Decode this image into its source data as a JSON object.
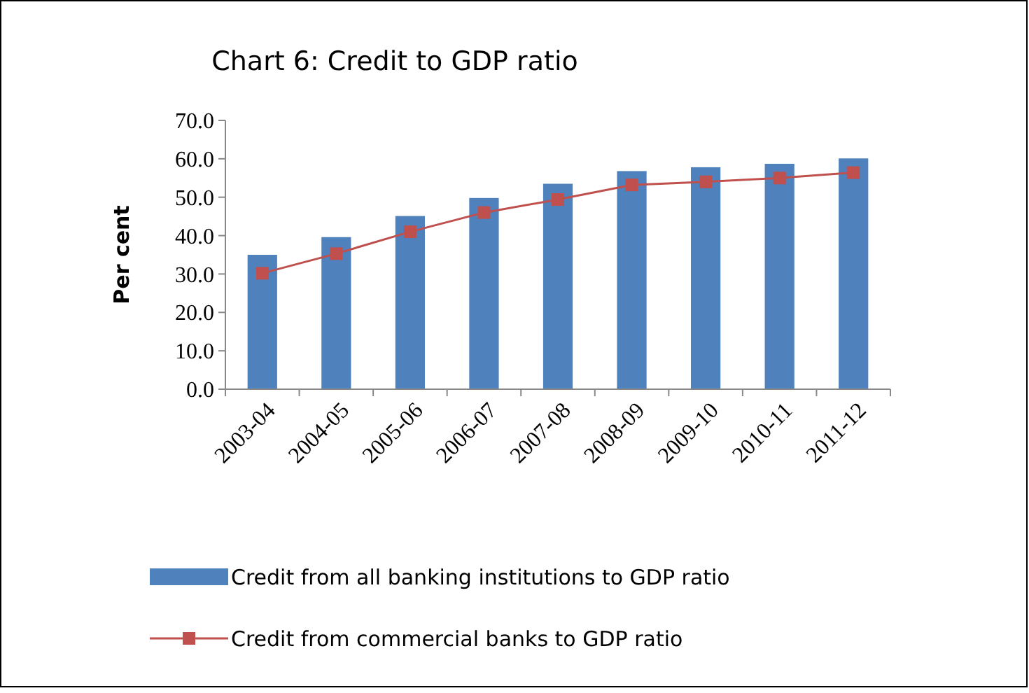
{
  "chart_data": {
    "type": "bar",
    "title": "Chart 6: Credit to GDP ratio",
    "ylabel": "Per cent",
    "categories": [
      "2003-04",
      "2004-05",
      "2005-06",
      "2006-07",
      "2007-08",
      "2008-09",
      "2009-10",
      "2010-11",
      "2011-12"
    ],
    "series": [
      {
        "name": "Credit from all banking institutions to GDP ratio",
        "color": "#4f81bd",
        "values": [
          35.0,
          39.6,
          45.1,
          49.8,
          53.5,
          56.8,
          57.8,
          58.7,
          60.1
        ]
      },
      {
        "name": "Credit from commercial banks to GDP ratio",
        "type": "line",
        "color": "#c0504d",
        "marker": "square",
        "values": [
          30.2,
          35.3,
          41.0,
          46.0,
          49.4,
          53.2,
          54.0,
          55.0,
          56.4
        ]
      }
    ],
    "ylim": [
      0,
      70
    ],
    "yticks": [
      {
        "value": 0,
        "label": "0.0"
      },
      {
        "value": 10,
        "label": "10.0"
      },
      {
        "value": 20,
        "label": "20.0"
      },
      {
        "value": 30,
        "label": "30.0"
      },
      {
        "value": 40,
        "label": "40.0"
      },
      {
        "value": 50,
        "label": "50.0"
      },
      {
        "value": 60,
        "label": "60.0"
      },
      {
        "value": 70,
        "label": "70.0"
      }
    ],
    "grid": false,
    "legend": "bottom"
  }
}
